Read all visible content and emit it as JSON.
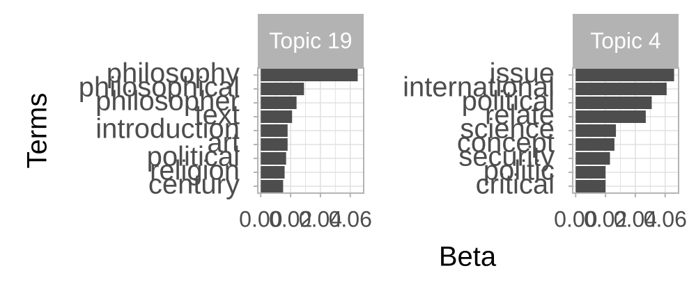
{
  "figure": {
    "xlabel": "Beta",
    "ylabel": "Terms"
  },
  "colors": {
    "bar": "#4d4d4d",
    "strip": "#b3b3b3",
    "strip_text": "#ffffff",
    "grid": "#e0e0e0",
    "border": "#b3b3b3",
    "text": "#4d4d4d",
    "title": "#000000"
  },
  "chart_data": [
    {
      "type": "bar",
      "orientation": "horizontal",
      "panel_title": "Topic 19",
      "categories": [
        "philosophy",
        "philosophical",
        "philosopher",
        "text",
        "introduction",
        "art",
        "political",
        "religion",
        "century"
      ],
      "values": [
        0.065,
        0.029,
        0.024,
        0.021,
        0.018,
        0.018,
        0.017,
        0.016,
        0.015
      ],
      "xlim": [
        -0.002,
        0.069
      ],
      "xticks": [
        0.0,
        0.02,
        0.04,
        0.06
      ],
      "xtick_labels": [
        "0.00",
        "0.02",
        "0.04",
        "0.06"
      ],
      "xlabel": "Beta",
      "ylabel": "Terms",
      "grid": true
    },
    {
      "type": "bar",
      "orientation": "horizontal",
      "panel_title": "Topic 4",
      "categories": [
        "issue",
        "international",
        "political",
        "relate",
        "science",
        "concept",
        "security",
        "politic",
        "critical"
      ],
      "values": [
        0.066,
        0.061,
        0.051,
        0.047,
        0.027,
        0.026,
        0.023,
        0.02,
        0.02
      ],
      "xlim": [
        -0.002,
        0.069
      ],
      "xticks": [
        0.0,
        0.02,
        0.04,
        0.06
      ],
      "xtick_labels": [
        "0.00",
        "0.02",
        "0.04",
        "0.06"
      ],
      "xlabel": "Beta",
      "ylabel": "Terms",
      "grid": true
    }
  ]
}
